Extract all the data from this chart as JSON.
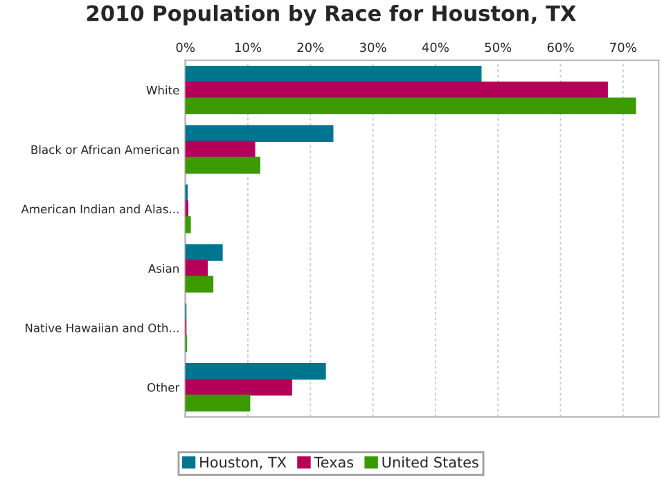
{
  "chart_data": {
    "type": "bar",
    "orientation": "horizontal",
    "title": "2010 Population by Race for Houston, TX",
    "categories": [
      "White",
      "Black or African American",
      "American Indian and Alas...",
      "Asian",
      "Native Hawaiian and Oth...",
      "Other"
    ],
    "series": [
      {
        "name": "Houston, TX",
        "color": "#00758f",
        "values": [
          47.3,
          23.6,
          0.3,
          5.9,
          0.1,
          22.4
        ]
      },
      {
        "name": "Texas",
        "color": "#b5005a",
        "values": [
          67.5,
          11.1,
          0.4,
          3.5,
          0.1,
          17.0
        ]
      },
      {
        "name": "United States",
        "color": "#3a9a00",
        "values": [
          72.0,
          11.9,
          0.8,
          4.4,
          0.2,
          10.3
        ]
      }
    ],
    "xlim": [
      0,
      75.7
    ],
    "xticks": [
      {
        "value": 0,
        "label": "0%"
      },
      {
        "value": 10,
        "label": "10%"
      },
      {
        "value": 20,
        "label": "20%"
      },
      {
        "value": 30,
        "label": "30%"
      },
      {
        "value": 40,
        "label": "40%"
      },
      {
        "value": 50,
        "label": "50%"
      },
      {
        "value": 60,
        "label": "60%"
      },
      {
        "value": 70,
        "label": "70%"
      }
    ],
    "grid": "x",
    "legend": "bottom"
  }
}
